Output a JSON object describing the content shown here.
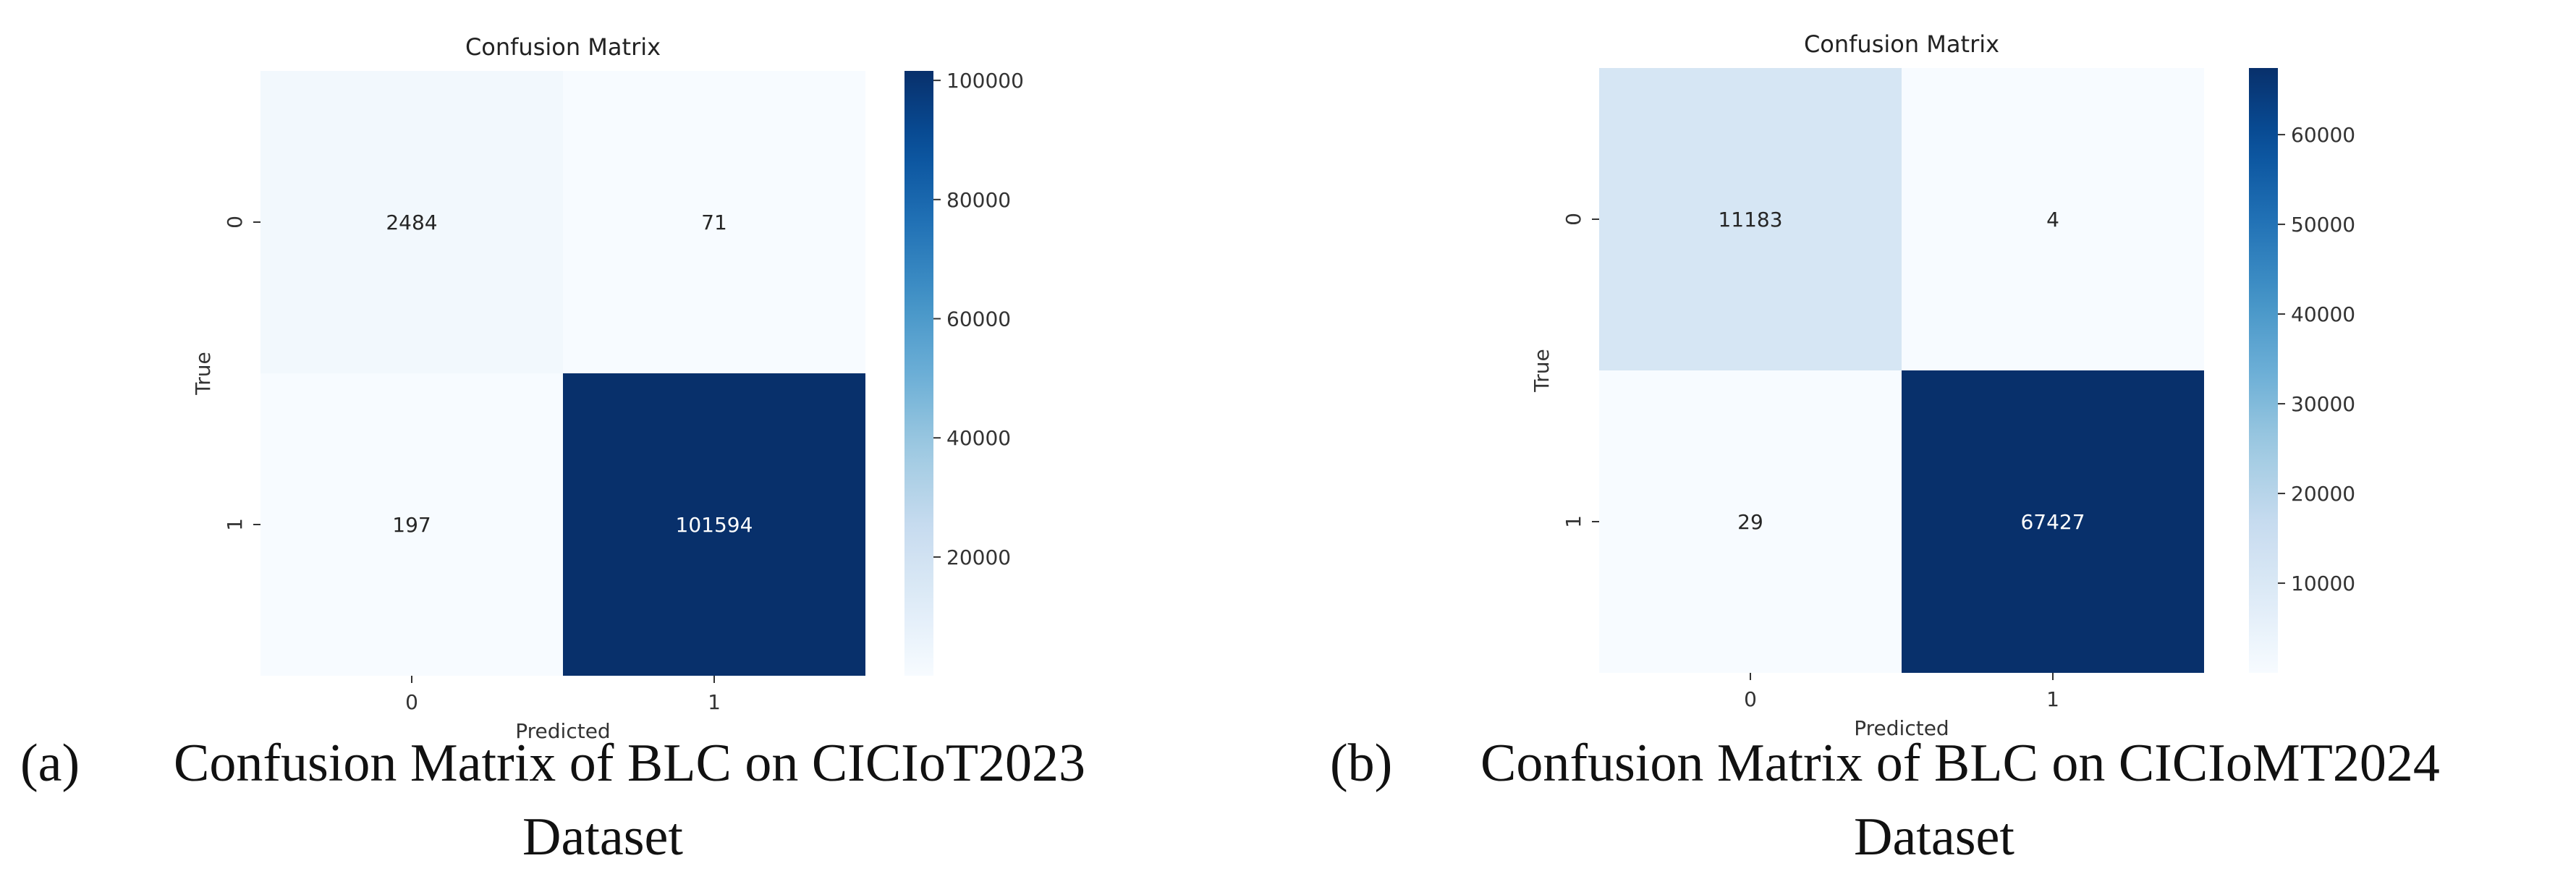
{
  "chart_data": [
    {
      "type": "heatmap",
      "title": "Confusion Matrix",
      "xlabel": "Predicted",
      "ylabel": "True",
      "x_categories": [
        "0",
        "1"
      ],
      "y_categories": [
        "0",
        "1"
      ],
      "values": [
        [
          2484,
          71
        ],
        [
          197,
          101594
        ]
      ],
      "colorbar": {
        "min": 71,
        "max": 101594,
        "ticks": [
          20000,
          40000,
          60000,
          80000,
          100000
        ],
        "tick_labels": [
          "20000",
          "40000",
          "60000",
          "80000",
          "100000"
        ]
      },
      "colormap": "Blues",
      "caption_label": "(a)",
      "caption_line1": "Confusion Matrix of BLC on CICIoT2023",
      "caption_line2": "Dataset"
    },
    {
      "type": "heatmap",
      "title": "Confusion Matrix",
      "xlabel": "Predicted",
      "ylabel": "True",
      "x_categories": [
        "0",
        "1"
      ],
      "y_categories": [
        "0",
        "1"
      ],
      "values": [
        [
          11183,
          4
        ],
        [
          29,
          67427
        ]
      ],
      "colorbar": {
        "min": 4,
        "max": 67427,
        "ticks": [
          10000,
          20000,
          30000,
          40000,
          50000,
          60000
        ],
        "tick_labels": [
          "10000",
          "20000",
          "30000",
          "40000",
          "50000",
          "60000"
        ]
      },
      "colormap": "Blues",
      "caption_label": "(b)",
      "caption_line1": "Confusion Matrix of BLC on CICIoMT2024",
      "caption_line2": "Dataset"
    }
  ]
}
